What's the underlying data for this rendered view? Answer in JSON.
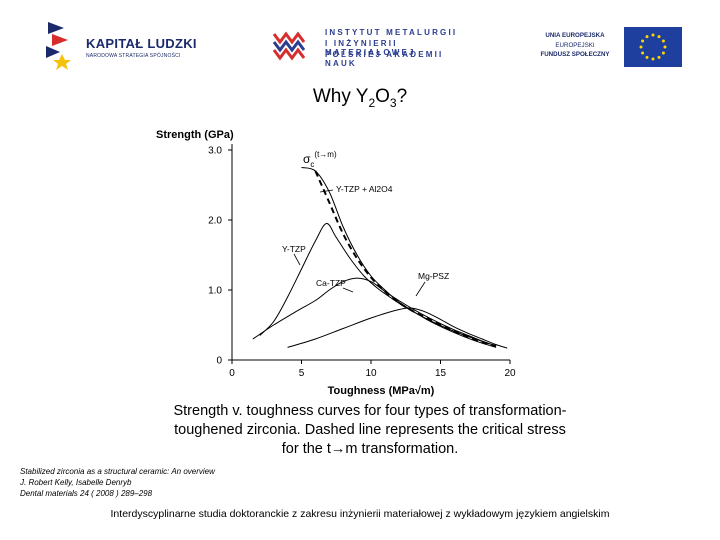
{
  "header": {
    "logo_left": {
      "title": "KAPITAŁ LUDZKI",
      "subtitle": "NARODOWA STRATEGIA SPÓJNOŚCI"
    },
    "logo_center": {
      "lines": [
        "INSTYTUT METALURGII",
        "I INŻYNIERII MATERIAŁOWEJ",
        "POLSKIEJ AKADEMII NAUK"
      ]
    },
    "logo_right": {
      "line1": "UNIA EUROPEJSKA",
      "line2": "EUROPEJSKI",
      "line3": "FUNDUSZ SPOŁECZNY"
    }
  },
  "title": {
    "text_main": "Why Y",
    "sub1": "2",
    "text_mid": "O",
    "sub2": "3",
    "text_end": "?"
  },
  "chart_data": {
    "type": "line",
    "title": "",
    "xlabel": "Toughness (MPa√m)",
    "ylabel": "Strength (GPa)",
    "xlim": [
      0,
      20
    ],
    "ylim": [
      0,
      3.0
    ],
    "x_ticks": [
      0,
      5,
      10,
      15,
      20
    ],
    "y_ticks": [
      0,
      1.0,
      2.0,
      3.0
    ],
    "y_tick_labels": [
      "0",
      "1.0",
      "2.0",
      "3.0"
    ],
    "grid": false,
    "series": [
      {
        "name": "σc(t→m)",
        "style": "dashed",
        "points": [
          [
            6.0,
            2.7
          ],
          [
            7.0,
            2.25
          ],
          [
            8.0,
            1.8
          ],
          [
            9.0,
            1.45
          ],
          [
            10.0,
            1.18
          ],
          [
            11.0,
            0.98
          ],
          [
            12.0,
            0.82
          ],
          [
            13.0,
            0.7
          ],
          [
            14.0,
            0.6
          ],
          [
            15.0,
            0.5
          ],
          [
            16.0,
            0.41
          ],
          [
            17.0,
            0.33
          ],
          [
            18.0,
            0.25
          ],
          [
            19.0,
            0.2
          ]
        ]
      },
      {
        "name": "Y-TZP + Al2O4",
        "style": "solid",
        "points": [
          [
            5.0,
            2.75
          ],
          [
            6.0,
            2.7
          ],
          [
            7.0,
            2.4
          ],
          [
            8.0,
            1.9
          ],
          [
            9.0,
            1.5
          ],
          [
            10.0,
            1.2
          ],
          [
            11.0,
            1.0
          ],
          [
            12.0,
            0.83
          ],
          [
            13.0,
            0.7
          ],
          [
            14.0,
            0.58
          ],
          [
            15.0,
            0.48
          ],
          [
            16.0,
            0.39
          ],
          [
            17.0,
            0.31
          ],
          [
            18.0,
            0.24
          ],
          [
            19.0,
            0.18
          ]
        ]
      },
      {
        "name": "Y-TZP",
        "style": "solid",
        "points": [
          [
            2.0,
            0.35
          ],
          [
            3.0,
            0.55
          ],
          [
            4.0,
            0.9
          ],
          [
            5.0,
            1.3
          ],
          [
            6.0,
            1.7
          ],
          [
            6.8,
            1.95
          ],
          [
            7.5,
            1.75
          ],
          [
            8.5,
            1.45
          ],
          [
            9.5,
            1.2
          ],
          [
            10.5,
            1.02
          ],
          [
            11.5,
            0.88
          ],
          [
            12.5,
            0.75
          ],
          [
            13.5,
            0.64
          ],
          [
            14.5,
            0.54
          ],
          [
            15.5,
            0.45
          ],
          [
            16.5,
            0.37
          ],
          [
            17.5,
            0.3
          ],
          [
            18.5,
            0.23
          ]
        ]
      },
      {
        "name": "Ca-TZP",
        "style": "solid",
        "points": [
          [
            1.5,
            0.3
          ],
          [
            3.0,
            0.5
          ],
          [
            4.5,
            0.68
          ],
          [
            6.0,
            0.85
          ],
          [
            7.0,
            1.0
          ],
          [
            8.0,
            1.12
          ],
          [
            9.0,
            1.17
          ],
          [
            10.0,
            1.12
          ],
          [
            11.0,
            0.98
          ],
          [
            12.0,
            0.85
          ],
          [
            13.0,
            0.73
          ],
          [
            14.0,
            0.62
          ],
          [
            15.0,
            0.52
          ],
          [
            16.0,
            0.43
          ],
          [
            17.0,
            0.35
          ],
          [
            18.0,
            0.27
          ],
          [
            19.0,
            0.2
          ]
        ]
      },
      {
        "name": "Mg-PSZ",
        "style": "solid",
        "points": [
          [
            4.0,
            0.18
          ],
          [
            6.0,
            0.3
          ],
          [
            8.0,
            0.45
          ],
          [
            10.0,
            0.6
          ],
          [
            12.0,
            0.72
          ],
          [
            13.0,
            0.74
          ],
          [
            14.0,
            0.68
          ],
          [
            15.0,
            0.58
          ],
          [
            16.0,
            0.47
          ],
          [
            17.0,
            0.38
          ],
          [
            18.0,
            0.3
          ],
          [
            19.0,
            0.22
          ],
          [
            19.8,
            0.17
          ]
        ]
      }
    ],
    "annotations": [
      {
        "text": "σ",
        "sup": "c",
        "text2": "(t→m)"
      },
      {
        "text": "Y-TZP + Al2O4"
      },
      {
        "text": "Y-TZP"
      },
      {
        "text": "Ca-TZP"
      },
      {
        "text": "Mg-PSZ"
      }
    ]
  },
  "caption": {
    "line1": "Strength v. toughness curves for four types of transformation-",
    "line2": "toughened zirconia. Dashed line represents the critical stress",
    "line3_a": "for the t",
    "line3_b": "m transformation.",
    "arrow": "→"
  },
  "reference": {
    "line1": "Stabilized zirconia as a structural ceramic: An overview",
    "line2": "J. Robert Kelly, Isabelle Denryb",
    "line3": "Dental materials 24 ( 2008 ) 289–298"
  },
  "footer": {
    "text": "Interdyscyplinarne studia doktoranckie z zakresu inżynierii materiałowej z wykładowym językiem angielskim"
  },
  "colors": {
    "text": "#000000",
    "logo_navy": "#1b2a6b",
    "logo_red": "#d62d2d",
    "eu_blue": "#1e3f9e",
    "eu_star": "#ffd700"
  }
}
